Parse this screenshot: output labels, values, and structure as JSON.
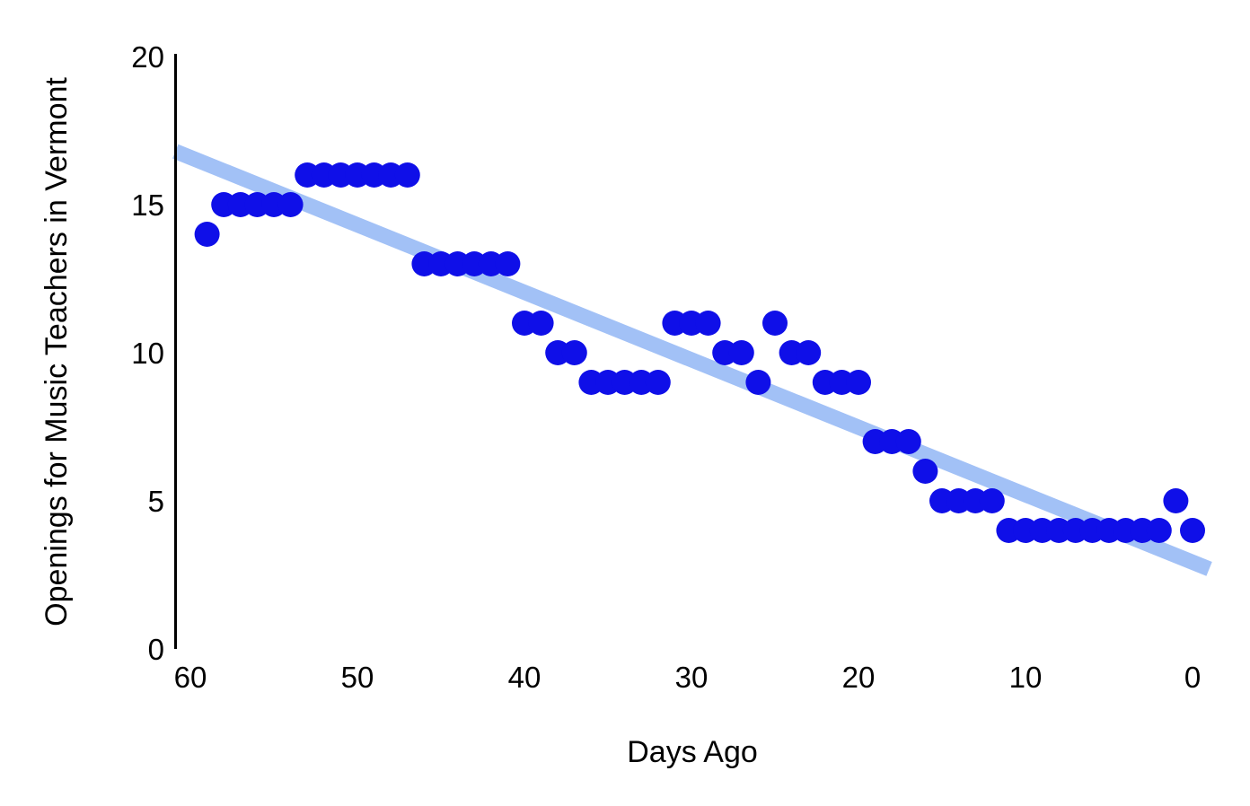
{
  "chart_data": {
    "type": "scatter",
    "title": "",
    "xlabel": "Days Ago",
    "ylabel": "Openings for Music Teachers in Vermont",
    "x_ticks": [
      60,
      50,
      40,
      30,
      20,
      10,
      0
    ],
    "y_ticks": [
      20,
      15,
      10,
      5,
      0
    ],
    "x_axis_reversed": true,
    "xlim": [
      61,
      -2
    ],
    "ylim": [
      0,
      20
    ],
    "grid": false,
    "legend": "none",
    "points": [
      [
        59,
        14
      ],
      [
        58,
        15
      ],
      [
        57,
        15
      ],
      [
        56,
        15
      ],
      [
        55,
        15
      ],
      [
        54,
        15
      ],
      [
        53,
        16
      ],
      [
        52,
        16
      ],
      [
        51,
        16
      ],
      [
        50,
        16
      ],
      [
        49,
        16
      ],
      [
        48,
        16
      ],
      [
        47,
        16
      ],
      [
        46,
        13
      ],
      [
        45,
        13
      ],
      [
        44,
        13
      ],
      [
        43,
        13
      ],
      [
        42,
        13
      ],
      [
        41,
        13
      ],
      [
        40,
        11
      ],
      [
        39,
        11
      ],
      [
        38,
        10
      ],
      [
        37,
        10
      ],
      [
        36,
        9
      ],
      [
        35,
        9
      ],
      [
        34,
        9
      ],
      [
        33,
        9
      ],
      [
        32,
        9
      ],
      [
        31,
        11
      ],
      [
        30,
        11
      ],
      [
        29,
        11
      ],
      [
        28,
        10
      ],
      [
        27,
        10
      ],
      [
        26,
        9
      ],
      [
        25,
        11
      ],
      [
        24,
        10
      ],
      [
        23,
        10
      ],
      [
        22,
        9
      ],
      [
        21,
        9
      ],
      [
        20,
        9
      ],
      [
        19,
        7
      ],
      [
        18,
        7
      ],
      [
        17,
        7
      ],
      [
        16,
        6
      ],
      [
        15,
        5
      ],
      [
        14,
        5
      ],
      [
        13,
        5
      ],
      [
        12,
        5
      ],
      [
        11,
        4
      ],
      [
        10,
        4
      ],
      [
        9,
        4
      ],
      [
        8,
        4
      ],
      [
        7,
        4
      ],
      [
        6,
        4
      ],
      [
        5,
        4
      ],
      [
        4,
        4
      ],
      [
        3,
        4
      ],
      [
        2,
        4
      ],
      [
        1,
        5
      ],
      [
        0,
        4
      ]
    ],
    "trendline": {
      "x1": 60.9,
      "y1": 16.8,
      "x2": -1.0,
      "y2": 2.7
    },
    "colors": {
      "point": "#0f0fe8",
      "trendline": "#a2c1f6",
      "axis": "#000000",
      "text": "#000000"
    }
  }
}
